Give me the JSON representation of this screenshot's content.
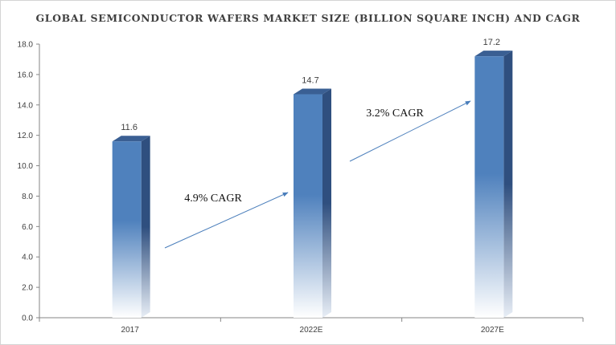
{
  "chart_data": {
    "type": "bar",
    "title": "GLOBAL SEMICONDUCTOR WAFERS MARKET SIZE (BILLION SQUARE INCH) AND CAGR",
    "categories": [
      "2017",
      "2022E",
      "2027E"
    ],
    "values": [
      11.6,
      14.7,
      17.2
    ],
    "value_labels": [
      "11.6",
      "14.7",
      "17.2"
    ],
    "ylim": [
      0,
      18
    ],
    "yticks": [
      "0.0",
      "2.0",
      "4.0",
      "6.0",
      "8.0",
      "10.0",
      "12.0",
      "14.0",
      "16.0",
      "18.0"
    ],
    "grid": false,
    "legend": "none",
    "annotations": [
      {
        "text": "4.9% CAGR",
        "from": "2017",
        "to": "2022E"
      },
      {
        "text": "3.2% CAGR",
        "from": "2022E",
        "to": "2027E"
      }
    ],
    "colors": {
      "bar_front": "#4f81bd",
      "bar_front_light": "#ffffff",
      "bar_side": "#2f4f7f",
      "bar_top": "#3a5f93",
      "arrow": "#4a7ebb",
      "axis": "#868686"
    }
  }
}
